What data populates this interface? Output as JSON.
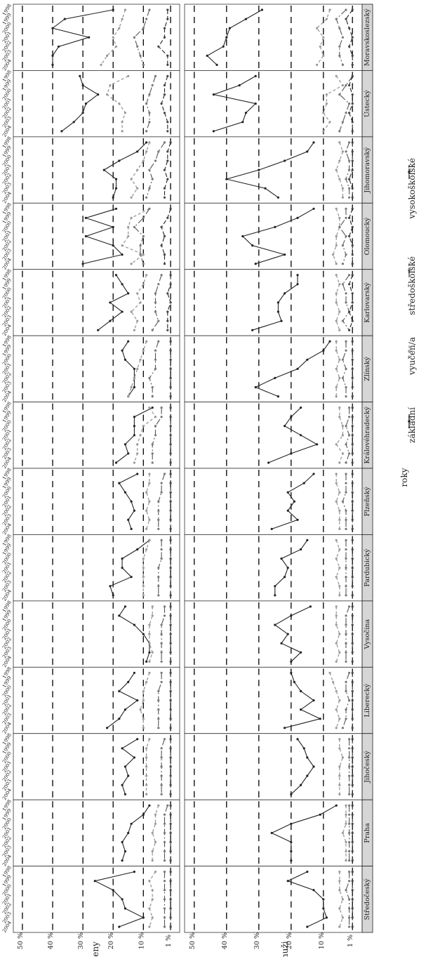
{
  "chart_data": {
    "type": "line",
    "orientation": "rotated-90",
    "row_labels": [
      "muži",
      "ženy"
    ],
    "regions": [
      "Moravskoslezský",
      "Ústecký",
      "Jihomoravský",
      "Olomoucký",
      "Karlovarský",
      "Zlínský",
      "Královéhradecký",
      "Plzeňský",
      "Pardubický",
      "Vysočina",
      "Liberecký",
      "Jihočeský",
      "Praha",
      "Středočeský"
    ],
    "x": [
      1998,
      1999,
      2000,
      2001,
      2002,
      2003,
      2004
    ],
    "x_tick_labels": [
      "1998",
      "1999",
      "2000",
      "2001",
      "2002",
      "2003",
      "2004"
    ],
    "y_ticks": [
      1,
      10,
      20,
      30,
      40,
      50
    ],
    "y_tick_labels": [
      "1 %",
      "10 %",
      "20 %",
      "30 %",
      "40 %",
      "50 %"
    ],
    "ylim": [
      -2,
      53
    ],
    "xlabel": "roky",
    "grid": true,
    "legend_position": "bottom",
    "legend": [
      {
        "label": "základní",
        "color": "#222222",
        "dash": ""
      },
      {
        "label": "vyučen/a",
        "color": "#9a9a9a",
        "dash": "4 3"
      },
      {
        "label": "středoškolské",
        "color": "#555555",
        "dash": "9 3 2 3"
      },
      {
        "label": "vysokoškolské",
        "color": "#222222",
        "dash": "6 3"
      }
    ],
    "series_names": [
      "základní",
      "vyučen/a",
      "středoškolské",
      "vysokoškolské"
    ],
    "data": {
      "muži": [
        [
          [
            29,
            34,
            39,
            40,
            41,
            46,
            43
          ],
          [
            8,
            9,
            12,
            10,
            11,
            10,
            12
          ],
          [
            3,
            6,
            5,
            4,
            5,
            5,
            4
          ],
          [
            1,
            3,
            2,
            1,
            2,
            1,
            1
          ]
        ],
        [
          [
            31,
            36,
            44,
            31,
            34,
            35,
            44
          ],
          [
            6,
            4,
            9,
            9,
            10,
            8,
            10
          ],
          [
            1,
            3,
            5,
            2,
            3,
            4,
            5
          ],
          [
            1,
            2,
            1,
            1,
            2,
            1,
            1
          ]
        ],
        [
          [
            13,
            15,
            22,
            30,
            40,
            28,
            24
          ],
          [
            5,
            4,
            5,
            6,
            5,
            4,
            4
          ],
          [
            2,
            3,
            2,
            2,
            3,
            2,
            2
          ],
          [
            1,
            1,
            1,
            1,
            2,
            1,
            1
          ]
        ],
        [
          [
            13,
            18,
            25,
            35,
            32,
            22,
            31
          ],
          [
            6,
            5,
            5,
            6,
            6,
            7,
            6
          ],
          [
            3,
            3,
            5,
            3,
            4,
            3,
            4
          ],
          [
            1,
            2,
            1,
            2,
            1,
            1,
            1
          ]
        ],
        [
          [
            18,
            18,
            22,
            24,
            24,
            23,
            32
          ],
          [
            6,
            5,
            6,
            6,
            5,
            6,
            5
          ],
          [
            2,
            4,
            3,
            3,
            2,
            4,
            2
          ],
          [
            1,
            2,
            1,
            1,
            2,
            1,
            2
          ]
        ],
        [
          [
            8,
            10,
            15,
            18,
            25,
            31,
            24
          ],
          [
            6,
            6,
            5,
            6,
            5,
            6,
            6
          ],
          [
            3,
            3,
            4,
            3,
            4,
            3,
            3
          ],
          [
            1,
            1,
            1,
            1,
            1,
            1,
            1
          ]
        ],
        [
          [
            17,
            20,
            22,
            17,
            12,
            20,
            27
          ],
          [
            5,
            5,
            4,
            4,
            6,
            4,
            5
          ],
          [
            2,
            2,
            3,
            2,
            3,
            2,
            3
          ],
          [
            1,
            1,
            1,
            1,
            1,
            1,
            1
          ]
        ],
        [
          [
            13,
            16,
            21,
            19,
            21,
            18,
            26
          ],
          [
            6,
            6,
            5,
            6,
            5,
            5,
            5
          ],
          [
            3,
            3,
            3,
            4,
            3,
            3,
            3
          ],
          [
            1,
            1,
            1,
            1,
            1,
            1,
            1
          ]
        ],
        [
          [
            15,
            17,
            23,
            21,
            22,
            25,
            25
          ],
          [
            6,
            5,
            6,
            5,
            6,
            5,
            5
          ],
          [
            3,
            3,
            3,
            3,
            3,
            3,
            3
          ],
          [
            1,
            1,
            1,
            1,
            1,
            1,
            1
          ]
        ],
        [
          [
            14,
            20,
            25,
            21,
            23,
            17,
            20
          ],
          [
            6,
            6,
            6,
            5,
            6,
            5,
            6
          ],
          [
            2,
            3,
            3,
            3,
            3,
            3,
            3
          ],
          [
            1,
            1,
            1,
            1,
            1,
            1,
            1
          ]
        ],
        [
          [
            20,
            19,
            17,
            13,
            17,
            11,
            22
          ],
          [
            8,
            7,
            6,
            5,
            6,
            5,
            6
          ],
          [
            2,
            3,
            3,
            2,
            3,
            3,
            4
          ],
          [
            1,
            1,
            1,
            1,
            1,
            1,
            1
          ]
        ],
        [
          [
            18,
            16,
            15,
            13,
            15,
            17,
            20
          ],
          [
            5,
            5,
            4,
            5,
            5,
            5,
            5
          ],
          [
            2,
            2,
            2,
            2,
            2,
            2,
            2
          ],
          [
            1,
            1,
            1,
            1,
            1,
            1,
            1
          ]
        ],
        [
          [
            6,
            11,
            20,
            26,
            20,
            20,
            20
          ],
          [
            3,
            3,
            3,
            4,
            3,
            3,
            3
          ],
          [
            2,
            2,
            2,
            2,
            2,
            2,
            2
          ],
          [
            1,
            1,
            1,
            1,
            1,
            1,
            1
          ]
        ],
        [
          [
            15,
            21,
            13,
            10,
            10,
            9,
            15
          ],
          [
            5,
            5,
            5,
            4,
            5,
            4,
            5
          ],
          [
            2,
            2,
            3,
            2,
            2,
            2,
            2
          ],
          [
            1,
            1,
            1,
            1,
            1,
            1,
            1
          ]
        ]
      ],
      "ženy": [
        [
          [
            20,
            36,
            40,
            28,
            38,
            40,
            40
          ],
          [
            16,
            17,
            18,
            20,
            19,
            22,
            24
          ],
          [
            8,
            9,
            10,
            13,
            12,
            11,
            10
          ],
          [
            2,
            2,
            3,
            3,
            5,
            2,
            2
          ]
        ],
        [
          [
            31,
            30,
            25,
            29,
            30,
            33,
            37
          ],
          [
            15,
            21,
            22,
            18,
            16,
            17,
            17
          ],
          [
            6,
            7,
            8,
            9,
            8,
            8,
            9
          ],
          [
            2,
            3,
            3,
            4,
            3,
            2,
            2
          ]
        ],
        [
          [
            9,
            12,
            18,
            23,
            19,
            19,
            20
          ],
          [
            8,
            9,
            10,
            12,
            14,
            12,
            14
          ],
          [
            3,
            5,
            6,
            8,
            7,
            8,
            9
          ],
          [
            1,
            2,
            2,
            3,
            2,
            3,
            3
          ]
        ],
        [
          [
            19,
            29,
            20,
            29,
            20,
            17,
            30
          ],
          [
            8,
            14,
            15,
            15,
            17,
            10,
            14
          ],
          [
            8,
            10,
            13,
            10,
            11,
            11,
            10
          ],
          [
            1,
            2,
            4,
            3,
            4,
            3,
            3
          ]
        ],
        [
          [
            19,
            17,
            15,
            21,
            17,
            21,
            25
          ],
          [
            9,
            10,
            12,
            11,
            14,
            12,
            13
          ],
          [
            4,
            5,
            6,
            6,
            6,
            5,
            7
          ],
          [
            1,
            1,
            2,
            1,
            2,
            2,
            2
          ]
        ],
        [
          [
            15,
            17,
            16,
            13,
            13,
            13,
            15
          ],
          [
            9,
            10,
            11,
            12,
            13,
            14,
            15
          ],
          [
            5,
            6,
            6,
            6,
            8,
            7,
            7
          ],
          [
            1,
            1,
            1,
            1,
            1,
            1,
            1
          ]
        ],
        [
          [
            7,
            13,
            13,
            13,
            16,
            15,
            19
          ],
          [
            8,
            6,
            10,
            11,
            12,
            12,
            13
          ],
          [
            4,
            4,
            6,
            6,
            7,
            7,
            7
          ],
          [
            1,
            1,
            1,
            1,
            1,
            1,
            1
          ]
        ],
        [
          [
            12,
            18,
            16,
            14,
            13,
            15,
            14
          ],
          [
            8,
            8,
            9,
            8,
            9,
            8,
            9
          ],
          [
            3,
            4,
            4,
            5,
            5,
            5,
            5
          ],
          [
            1,
            1,
            1,
            1,
            1,
            1,
            1
          ]
        ],
        [
          [
            8,
            12,
            17,
            17,
            14,
            21,
            20
          ],
          [
            8,
            9,
            10,
            10,
            10,
            10,
            10
          ],
          [
            4,
            4,
            4,
            5,
            5,
            5,
            5
          ],
          [
            1,
            1,
            1,
            1,
            1,
            1,
            1
          ]
        ],
        [
          [
            16,
            18,
            13,
            10,
            8,
            8,
            9
          ],
          [
            7,
            7,
            8,
            8,
            8,
            7,
            8
          ],
          [
            3,
            3,
            4,
            4,
            4,
            4,
            4
          ],
          [
            1,
            1,
            1,
            1,
            1,
            1,
            1
          ]
        ],
        [
          [
            13,
            15,
            18,
            12,
            16,
            18,
            22
          ],
          [
            8,
            9,
            10,
            10,
            11,
            10,
            10
          ],
          [
            4,
            4,
            5,
            5,
            5,
            5,
            5
          ],
          [
            1,
            1,
            1,
            1,
            1,
            1,
            1
          ]
        ],
        [
          [
            12,
            17,
            13,
            16,
            15,
            17,
            16
          ],
          [
            8,
            9,
            9,
            9,
            9,
            9,
            9
          ],
          [
            3,
            4,
            4,
            4,
            4,
            4,
            4
          ],
          [
            1,
            1,
            1,
            1,
            1,
            1,
            1
          ]
        ],
        [
          [
            8,
            10,
            14,
            15,
            17,
            16,
            17
          ],
          [
            5,
            6,
            6,
            7,
            6,
            7,
            7
          ],
          [
            2,
            3,
            3,
            3,
            3,
            3,
            3
          ],
          [
            1,
            1,
            1,
            1,
            1,
            1,
            1
          ]
        ],
        [
          [
            13,
            26,
            20,
            17,
            16,
            10,
            18
          ],
          [
            6,
            8,
            7,
            7,
            8,
            7,
            8
          ],
          [
            3,
            3,
            3,
            3,
            3,
            3,
            3
          ],
          [
            1,
            1,
            1,
            1,
            1,
            1,
            1
          ]
        ]
      ]
    }
  }
}
